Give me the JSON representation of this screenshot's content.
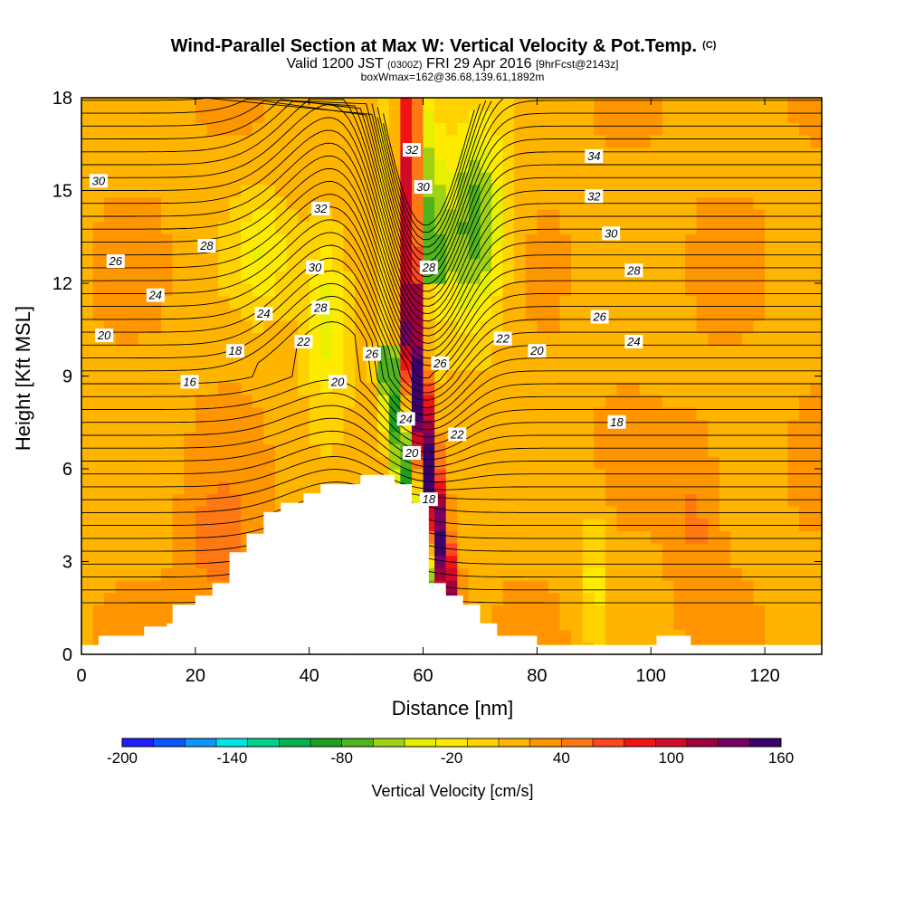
{
  "chart_data": {
    "type": "heatmap",
    "title": "Wind-Parallel Section at Max W: Vertical Velocity & Pot.Temp.",
    "title_mark": "(C)",
    "subtitle": {
      "prefix": "Valid 1200 JST",
      "utc": "(0300Z)",
      "date": "FRI 29 Apr 2016",
      "fcst": "[9hrFcst@2143z]"
    },
    "subtitle2": "boxWmax=162@36.68,139.61,1892m",
    "xlabel": "Distance [nm]",
    "ylabel": "Height [Kft MSL]",
    "xlim": [
      0,
      130
    ],
    "ylim": [
      0,
      18
    ],
    "x_ticks": [
      "0",
      "20",
      "40",
      "60",
      "80",
      "100",
      "120"
    ],
    "y_ticks": [
      "0",
      "3",
      "6",
      "9",
      "12",
      "15",
      "18"
    ],
    "colorbar": {
      "label": "Vertical Velocity [cm/s]",
      "range": [
        -200,
        160
      ],
      "tick_labels": [
        "-200",
        "-140",
        "-80",
        "-20",
        "40",
        "100",
        "160"
      ],
      "colors": [
        "#1e1eff",
        "#0a55ff",
        "#0a96ff",
        "#00e6e6",
        "#00d28c",
        "#00b450",
        "#1ea01e",
        "#50b41e",
        "#a0d214",
        "#e6f000",
        "#ffeb00",
        "#ffd200",
        "#ffb400",
        "#ff9600",
        "#ff7814",
        "#ff461e",
        "#f01414",
        "#d20a28",
        "#a0003c",
        "#780064",
        "#3c006e"
      ]
    },
    "terrain": [
      [
        0,
        0.3
      ],
      [
        3,
        0.3
      ],
      [
        3,
        0.6
      ],
      [
        11,
        0.6
      ],
      [
        11,
        0.9
      ],
      [
        15,
        0.9
      ],
      [
        15,
        1.0
      ],
      [
        16,
        1.0
      ],
      [
        16,
        1.6
      ],
      [
        20,
        1.6
      ],
      [
        20,
        1.9
      ],
      [
        23,
        1.9
      ],
      [
        23,
        2.3
      ],
      [
        26,
        2.3
      ],
      [
        26,
        3.3
      ],
      [
        29,
        3.3
      ],
      [
        29,
        3.9
      ],
      [
        32,
        3.9
      ],
      [
        32,
        4.6
      ],
      [
        35,
        4.6
      ],
      [
        35,
        4.9
      ],
      [
        39,
        4.9
      ],
      [
        39,
        5.2
      ],
      [
        42,
        5.2
      ],
      [
        42,
        5.5
      ],
      [
        49,
        5.5
      ],
      [
        49,
        5.8
      ],
      [
        55,
        5.8
      ],
      [
        55,
        5.5
      ],
      [
        58,
        5.5
      ],
      [
        58,
        4.9
      ],
      [
        61,
        4.9
      ],
      [
        61,
        2.3
      ],
      [
        64,
        2.3
      ],
      [
        64,
        1.9
      ],
      [
        67,
        1.9
      ],
      [
        67,
        1.6
      ],
      [
        70,
        1.6
      ],
      [
        70,
        1.0
      ],
      [
        73,
        1.0
      ],
      [
        73,
        0.6
      ],
      [
        80,
        0.6
      ],
      [
        80,
        0.3
      ],
      [
        101,
        0.3
      ],
      [
        101,
        0.6
      ],
      [
        107,
        0.6
      ],
      [
        107,
        0.3
      ],
      [
        130,
        0.3
      ]
    ],
    "contour_labels": [
      {
        "text": "30",
        "x": 3,
        "y": 15.3
      },
      {
        "text": "26",
        "x": 6,
        "y": 12.7
      },
      {
        "text": "24",
        "x": 13,
        "y": 11.6
      },
      {
        "text": "28",
        "x": 22,
        "y": 13.2
      },
      {
        "text": "32",
        "x": 42,
        "y": 14.4
      },
      {
        "text": "30",
        "x": 41,
        "y": 12.5
      },
      {
        "text": "28",
        "x": 42,
        "y": 11.2
      },
      {
        "text": "24",
        "x": 32,
        "y": 11.0
      },
      {
        "text": "22",
        "x": 39,
        "y": 10.1
      },
      {
        "text": "20",
        "x": 4,
        "y": 10.3
      },
      {
        "text": "18",
        "x": 27,
        "y": 9.8
      },
      {
        "text": "16",
        "x": 19,
        "y": 8.8
      },
      {
        "text": "20",
        "x": 45,
        "y": 8.8
      },
      {
        "text": "26",
        "x": 51,
        "y": 9.7
      },
      {
        "text": "24",
        "x": 57,
        "y": 7.6
      },
      {
        "text": "20",
        "x": 58,
        "y": 6.5
      },
      {
        "text": "18",
        "x": 61,
        "y": 5.0
      },
      {
        "text": "32",
        "x": 58,
        "y": 16.3
      },
      {
        "text": "30",
        "x": 60,
        "y": 15.1
      },
      {
        "text": "28",
        "x": 61,
        "y": 12.5
      },
      {
        "text": "26",
        "x": 63,
        "y": 9.4
      },
      {
        "text": "22",
        "x": 66,
        "y": 7.1
      },
      {
        "text": "22",
        "x": 74,
        "y": 10.2
      },
      {
        "text": "20",
        "x": 80,
        "y": 9.8
      },
      {
        "text": "34",
        "x": 90,
        "y": 16.1
      },
      {
        "text": "32",
        "x": 90,
        "y": 14.8
      },
      {
        "text": "30",
        "x": 93,
        "y": 13.6
      },
      {
        "text": "28",
        "x": 97,
        "y": 12.4
      },
      {
        "text": "26",
        "x": 91,
        "y": 10.9
      },
      {
        "text": "24",
        "x": 97,
        "y": 10.1
      },
      {
        "text": "18",
        "x": 94,
        "y": 7.5
      }
    ]
  }
}
